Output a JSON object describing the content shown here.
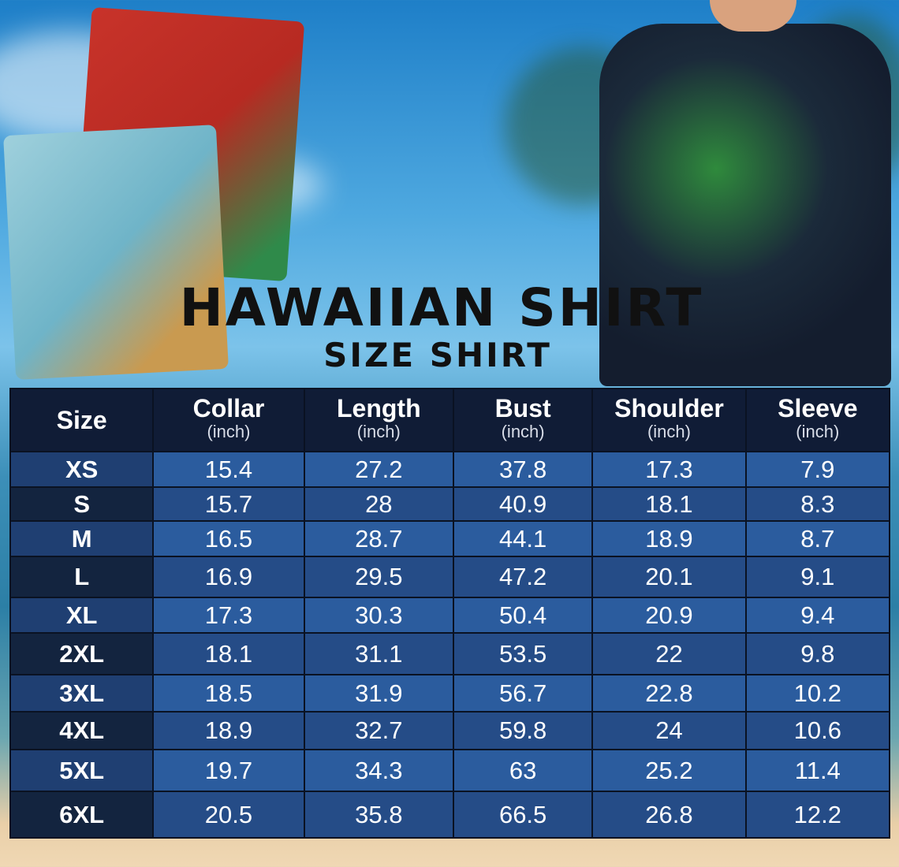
{
  "title": "HAWAIIAN SHIRT",
  "subtitle": "SIZE SHIRT",
  "table": {
    "headers": [
      {
        "label": "Size",
        "unit": ""
      },
      {
        "label": "Collar",
        "unit": "(inch)"
      },
      {
        "label": "Length",
        "unit": "(inch)"
      },
      {
        "label": "Bust",
        "unit": "(inch)"
      },
      {
        "label": "Shoulder",
        "unit": "(inch)"
      },
      {
        "label": "Sleeve",
        "unit": "(inch)"
      }
    ],
    "rows": [
      [
        "XS",
        "15.4",
        "27.2",
        "37.8",
        "17.3",
        "7.9"
      ],
      [
        "S",
        "15.7",
        "28",
        "40.9",
        "18.1",
        "8.3"
      ],
      [
        "M",
        "16.5",
        "28.7",
        "44.1",
        "18.9",
        "8.7"
      ],
      [
        "L",
        "16.9",
        "29.5",
        "47.2",
        "20.1",
        "9.1"
      ],
      [
        "XL",
        "17.3",
        "30.3",
        "50.4",
        "20.9",
        "9.4"
      ],
      [
        "2XL",
        "18.1",
        "31.1",
        "53.5",
        "22",
        "9.8"
      ],
      [
        "3XL",
        "18.5",
        "31.9",
        "56.7",
        "22.8",
        "10.2"
      ],
      [
        "4XL",
        "18.9",
        "32.7",
        "59.8",
        "24",
        "10.6"
      ],
      [
        "5XL",
        "19.7",
        "34.3",
        "63",
        "25.2",
        "11.4"
      ],
      [
        "6XL",
        "20.5",
        "35.8",
        "66.5",
        "26.8",
        "12.2"
      ]
    ]
  },
  "colors": {
    "header": "#101c36",
    "row_light": "#2b5c9e",
    "row_dark": "#254c87",
    "title": "#111111"
  }
}
